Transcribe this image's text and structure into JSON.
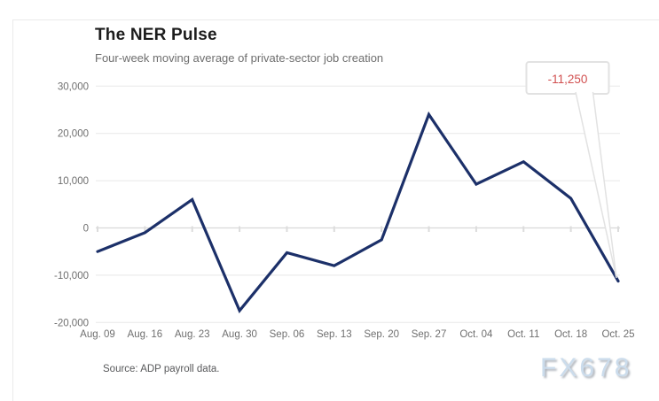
{
  "chart_data": {
    "type": "line",
    "title": "The NER Pulse",
    "subtitle": "Four-week moving average of private-sector job creation",
    "categories": [
      "Aug. 09",
      "Aug. 16",
      "Aug. 23",
      "Aug. 30",
      "Sep. 06",
      "Sep. 13",
      "Sep. 20",
      "Sep. 27",
      "Oct. 04",
      "Oct. 11",
      "Oct. 18",
      "Oct. 25"
    ],
    "values": [
      -5000,
      -1000,
      6000,
      -17500,
      -5250,
      -8000,
      -2500,
      24000,
      9250,
      14000,
      6250,
      -11250
    ],
    "xlabel": "",
    "ylabel": "",
    "ylim": [
      -20000,
      30000
    ],
    "yticks": [
      {
        "value": 30000,
        "label": "30,000"
      },
      {
        "value": 20000,
        "label": "20,000"
      },
      {
        "value": 10000,
        "label": "10,000"
      },
      {
        "value": 0,
        "label": "0"
      },
      {
        "value": -10000,
        "label": "-10,000"
      },
      {
        "value": -20000,
        "label": "-20,000"
      }
    ],
    "grid": true,
    "legend": "none",
    "line_color": "#1c3069",
    "grid_color": "#e8e8e8",
    "axis_label_color": "#6f6f6f",
    "callout": {
      "label": "-11,250",
      "color": "#d14f4f"
    }
  },
  "footer": {
    "source": "Source: ADP payroll data.",
    "watermark": "FX678"
  }
}
